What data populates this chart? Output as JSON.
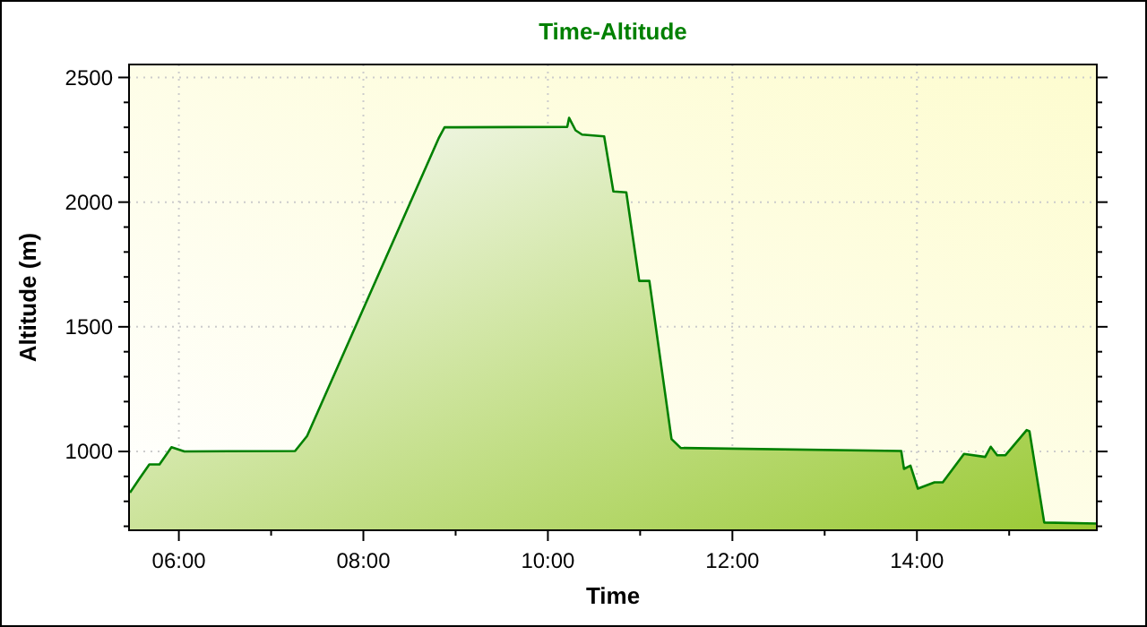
{
  "chart_data": {
    "type": "area",
    "title": "Time-Altitude",
    "xlabel": "Time",
    "ylabel": "Altitude (m)",
    "xlim": [
      5.46,
      15.95
    ],
    "ylim": [
      684,
      2552
    ],
    "xticks": [
      {
        "value": 6,
        "label": "06:00"
      },
      {
        "value": 7,
        "label": null
      },
      {
        "value": 8,
        "label": "08:00"
      },
      {
        "value": 9,
        "label": null
      },
      {
        "value": 10,
        "label": "10:00"
      },
      {
        "value": 11,
        "label": null
      },
      {
        "value": 12,
        "label": "12:00"
      },
      {
        "value": 13,
        "label": null
      },
      {
        "value": 14,
        "label": "14:00"
      },
      {
        "value": 15,
        "label": null
      }
    ],
    "yticks": [
      {
        "value": 700,
        "label": null
      },
      {
        "value": 800,
        "label": null
      },
      {
        "value": 900,
        "label": null
      },
      1000,
      {
        "value": 1100,
        "label": null
      },
      {
        "value": 1200,
        "label": null
      },
      {
        "value": 1300,
        "label": null
      },
      {
        "value": 1400,
        "label": null
      },
      1500,
      {
        "value": 1600,
        "label": null
      },
      {
        "value": 1700,
        "label": null
      },
      {
        "value": 1800,
        "label": null
      },
      {
        "value": 1900,
        "label": null
      },
      2000,
      {
        "value": 2100,
        "label": null
      },
      {
        "value": 2200,
        "label": null
      },
      {
        "value": 2300,
        "label": null
      },
      {
        "value": 2400,
        "label": null
      },
      2500
    ],
    "grid": true,
    "line_style": "solid",
    "x": [
      5.47,
      5.58,
      5.68,
      5.79,
      5.92,
      6.06,
      7.26,
      7.39,
      8.82,
      8.88,
      10.21,
      10.23,
      10.3,
      10.37,
      10.61,
      10.71,
      10.85,
      10.99,
      11.1,
      11.34,
      11.44,
      13.83,
      13.86,
      13.93,
      14.01,
      14.19,
      14.28,
      14.51,
      14.74,
      14.8,
      14.87,
      14.96,
      15.19,
      15.22,
      15.38,
      15.95
    ],
    "series": [
      {
        "color": "#008000",
        "values": [
          835,
          895,
          948,
          948,
          1017,
          1000,
          1002,
          1062,
          2259,
          2300,
          2302,
          2338,
          2288,
          2271,
          2264,
          2043,
          2039,
          1684,
          1684,
          1050,
          1014,
          1002,
          930,
          943,
          851,
          876,
          876,
          990,
          978,
          1019,
          985,
          985,
          1086,
          1081,
          715,
          711
        ]
      }
    ]
  }
}
